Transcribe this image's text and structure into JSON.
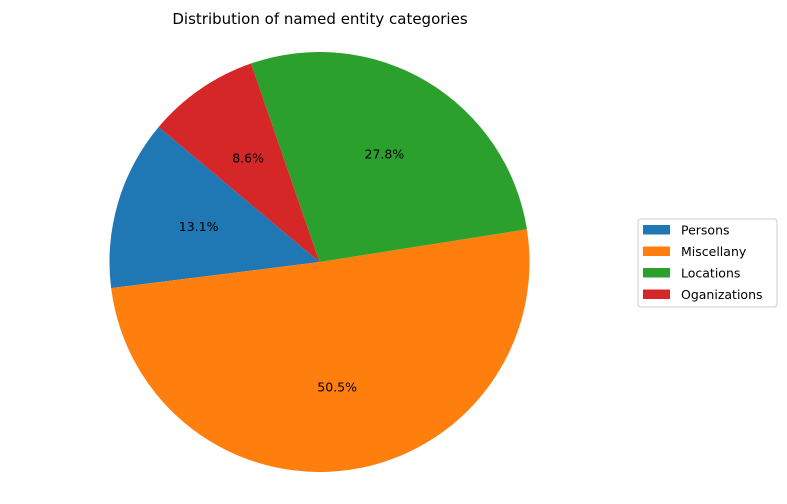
{
  "chart_data": {
    "type": "pie",
    "title": "Distribution of named entity categories",
    "start_angle_deg": 140,
    "direction": "counterclockwise",
    "legend_position": "right",
    "slices": [
      {
        "label": "Persons",
        "value": 13.1,
        "pct_label": "13.1%",
        "color": "#1f77b4"
      },
      {
        "label": "Miscellany",
        "value": 50.5,
        "pct_label": "50.5%",
        "color": "#ff7f0e"
      },
      {
        "label": "Locations",
        "value": 27.8,
        "pct_label": "27.8%",
        "color": "#2ca02c"
      },
      {
        "label": "Oganizations",
        "value": 8.6,
        "pct_label": "8.6%",
        "color": "#d62728"
      }
    ]
  }
}
